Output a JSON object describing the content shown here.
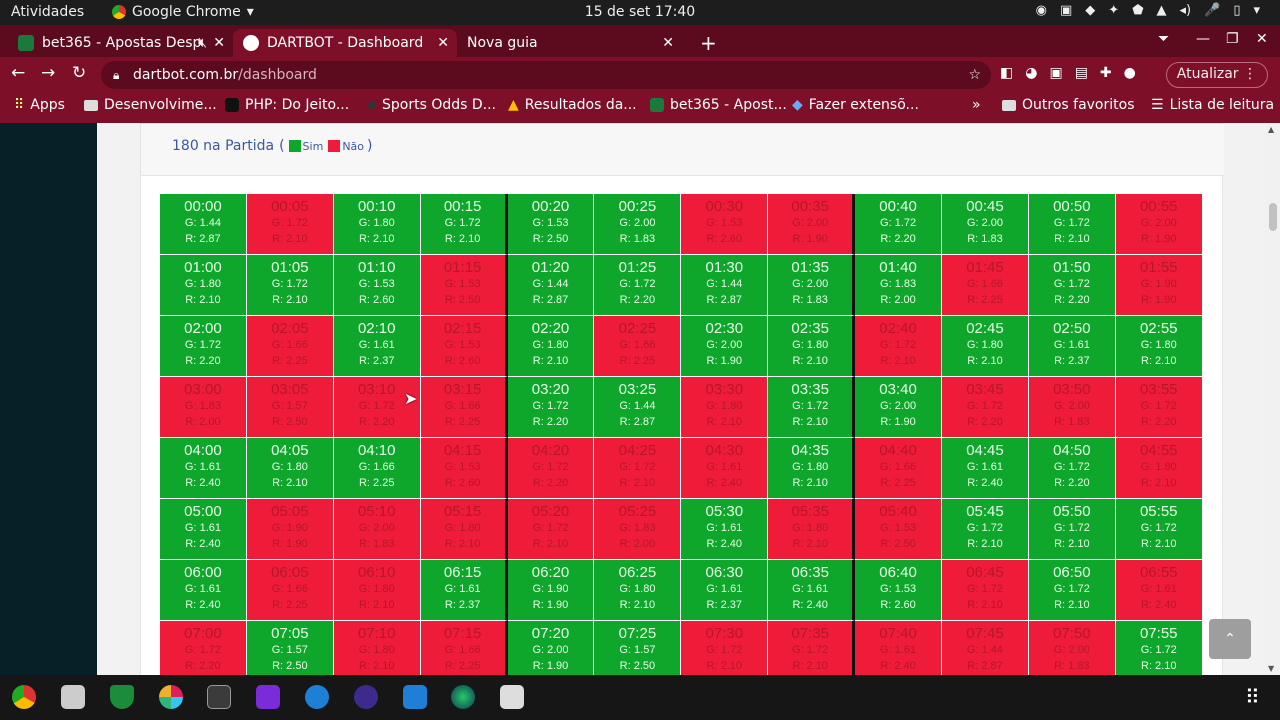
{
  "system": {
    "activities": "Atividades",
    "app_name": "Google Chrome",
    "clock": "15 de set  17:40",
    "tray": [
      "◉",
      "▣",
      "◆",
      "✦",
      "⬟",
      "▲",
      "◂)",
      "🎤",
      "▯",
      "▾"
    ]
  },
  "tabs": [
    {
      "title": "bet365 - Apostas Desp",
      "fav_color": "#1a7a3c"
    },
    {
      "title": "DARTBOT - Dashboard",
      "fav_color": "#ffffff"
    },
    {
      "title": "Nova guia",
      "fav_color": ""
    }
  ],
  "toolbar": {
    "url_host": "dartbot.com.br",
    "url_path": "/dashboard",
    "update_label": "Atualizar"
  },
  "bookmarks": {
    "items": [
      "Apps",
      "Desenvolvime...",
      "PHP: Do Jeito...",
      "Sports Odds D...",
      "Resultados da...",
      "bet365 - Apost...",
      "Fazer extensõ..."
    ],
    "more": "»",
    "others": "Outros favoritos",
    "reading": "Lista de leitura"
  },
  "card": {
    "title": "180 na Partida",
    "paren_open": "(",
    "paren_close": ")",
    "legend_yes": "Sim",
    "legend_no": "Não",
    "yes_color": "#0ea62b",
    "no_color": "#ee1c38"
  },
  "grid": [
    [
      {
        "time": "00:00",
        "g": "G: 1.44",
        "r": "R: 2.87",
        "res": "g"
      },
      {
        "time": "00:05",
        "g": "G: 1.72",
        "r": "R: 2.10",
        "res": "r"
      },
      {
        "time": "00:10",
        "g": "G: 1.80",
        "r": "R: 2.10",
        "res": "g"
      },
      {
        "time": "00:15",
        "g": "G: 1.72",
        "r": "R: 2.10",
        "res": "g"
      },
      {
        "time": "00:20",
        "g": "G: 1.53",
        "r": "R: 2.50",
        "res": "g"
      },
      {
        "time": "00:25",
        "g": "G: 2.00",
        "r": "R: 1.83",
        "res": "g"
      },
      {
        "time": "00:30",
        "g": "G: 1.53",
        "r": "R: 2.60",
        "res": "r"
      },
      {
        "time": "00:35",
        "g": "G: 2.00",
        "r": "R: 1.90",
        "res": "r"
      },
      {
        "time": "00:40",
        "g": "G: 1.72",
        "r": "R: 2.20",
        "res": "g"
      },
      {
        "time": "00:45",
        "g": "G: 2.00",
        "r": "R: 1.83",
        "res": "g"
      },
      {
        "time": "00:50",
        "g": "G: 1.72",
        "r": "R: 2.10",
        "res": "g"
      },
      {
        "time": "00:55",
        "g": "G: 2.00",
        "r": "R: 1.90",
        "res": "r"
      }
    ],
    [
      {
        "time": "01:00",
        "g": "G: 1.80",
        "r": "R: 2.10",
        "res": "g"
      },
      {
        "time": "01:05",
        "g": "G: 1.72",
        "r": "R: 2.10",
        "res": "g"
      },
      {
        "time": "01:10",
        "g": "G: 1.53",
        "r": "R: 2.60",
        "res": "g"
      },
      {
        "time": "01:15",
        "g": "G: 1.53",
        "r": "R: 2.50",
        "res": "r"
      },
      {
        "time": "01:20",
        "g": "G: 1.44",
        "r": "R: 2.87",
        "res": "g"
      },
      {
        "time": "01:25",
        "g": "G: 1.72",
        "r": "R: 2.20",
        "res": "g"
      },
      {
        "time": "01:30",
        "g": "G: 1.44",
        "r": "R: 2.87",
        "res": "g"
      },
      {
        "time": "01:35",
        "g": "G: 2.00",
        "r": "R: 1.83",
        "res": "g"
      },
      {
        "time": "01:40",
        "g": "G: 1.83",
        "r": "R: 2.00",
        "res": "g"
      },
      {
        "time": "01:45",
        "g": "G: 1.66",
        "r": "R: 2.25",
        "res": "r"
      },
      {
        "time": "01:50",
        "g": "G: 1.72",
        "r": "R: 2.20",
        "res": "g"
      },
      {
        "time": "01:55",
        "g": "G: 1.90",
        "r": "R: 1.90",
        "res": "r"
      }
    ],
    [
      {
        "time": "02:00",
        "g": "G: 1.72",
        "r": "R: 2.20",
        "res": "g"
      },
      {
        "time": "02:05",
        "g": "G: 1.66",
        "r": "R: 2.25",
        "res": "r"
      },
      {
        "time": "02:10",
        "g": "G: 1.61",
        "r": "R: 2.37",
        "res": "g"
      },
      {
        "time": "02:15",
        "g": "G: 1.53",
        "r": "R: 2.60",
        "res": "r"
      },
      {
        "time": "02:20",
        "g": "G: 1.80",
        "r": "R: 2.10",
        "res": "g"
      },
      {
        "time": "02:25",
        "g": "G: 1.66",
        "r": "R: 2.25",
        "res": "r"
      },
      {
        "time": "02:30",
        "g": "G: 2.00",
        "r": "R: 1.90",
        "res": "g"
      },
      {
        "time": "02:35",
        "g": "G: 1.80",
        "r": "R: 2.10",
        "res": "g"
      },
      {
        "time": "02:40",
        "g": "G: 1.72",
        "r": "R: 2.10",
        "res": "r"
      },
      {
        "time": "02:45",
        "g": "G: 1.80",
        "r": "R: 2.10",
        "res": "g"
      },
      {
        "time": "02:50",
        "g": "G: 1.61",
        "r": "R: 2.37",
        "res": "g"
      },
      {
        "time": "02:55",
        "g": "G: 1.80",
        "r": "R: 2.10",
        "res": "g"
      }
    ],
    [
      {
        "time": "03:00",
        "g": "G: 1.83",
        "r": "R: 2.00",
        "res": "r"
      },
      {
        "time": "03:05",
        "g": "G: 1.57",
        "r": "R: 2.50",
        "res": "r"
      },
      {
        "time": "03:10",
        "g": "G: 1.72",
        "r": "R: 2.20",
        "res": "r"
      },
      {
        "time": "03:15",
        "g": "G: 1.66",
        "r": "R: 2.25",
        "res": "r"
      },
      {
        "time": "03:20",
        "g": "G: 1.72",
        "r": "R: 2.20",
        "res": "g"
      },
      {
        "time": "03:25",
        "g": "G: 1.44",
        "r": "R: 2.87",
        "res": "g"
      },
      {
        "time": "03:30",
        "g": "G: 1.80",
        "r": "R: 2.10",
        "res": "r"
      },
      {
        "time": "03:35",
        "g": "G: 1.72",
        "r": "R: 2.10",
        "res": "g"
      },
      {
        "time": "03:40",
        "g": "G: 2.00",
        "r": "R: 1.90",
        "res": "g"
      },
      {
        "time": "03:45",
        "g": "G: 1.72",
        "r": "R: 2.20",
        "res": "r"
      },
      {
        "time": "03:50",
        "g": "G: 2.00",
        "r": "R: 1.83",
        "res": "r"
      },
      {
        "time": "03:55",
        "g": "G: 1.72",
        "r": "R: 2.20",
        "res": "r"
      }
    ],
    [
      {
        "time": "04:00",
        "g": "G: 1.61",
        "r": "R: 2.40",
        "res": "g"
      },
      {
        "time": "04:05",
        "g": "G: 1.80",
        "r": "R: 2.10",
        "res": "g"
      },
      {
        "time": "04:10",
        "g": "G: 1.66",
        "r": "R: 2.25",
        "res": "g"
      },
      {
        "time": "04:15",
        "g": "G: 1.53",
        "r": "R: 2.60",
        "res": "r"
      },
      {
        "time": "04:20",
        "g": "G: 1.72",
        "r": "R: 2.20",
        "res": "r"
      },
      {
        "time": "04:25",
        "g": "G: 1.72",
        "r": "R: 2.10",
        "res": "r"
      },
      {
        "time": "04:30",
        "g": "G: 1.61",
        "r": "R: 2.40",
        "res": "r"
      },
      {
        "time": "04:35",
        "g": "G: 1.80",
        "r": "R: 2.10",
        "res": "g"
      },
      {
        "time": "04:40",
        "g": "G: 1.66",
        "r": "R: 2.25",
        "res": "r"
      },
      {
        "time": "04:45",
        "g": "G: 1.61",
        "r": "R: 2.40",
        "res": "g"
      },
      {
        "time": "04:50",
        "g": "G: 1.72",
        "r": "R: 2.20",
        "res": "g"
      },
      {
        "time": "04:55",
        "g": "G: 1.80",
        "r": "R: 2.10",
        "res": "r"
      }
    ],
    [
      {
        "time": "05:00",
        "g": "G: 1.61",
        "r": "R: 2.40",
        "res": "g"
      },
      {
        "time": "05:05",
        "g": "G: 1.90",
        "r": "R: 1.90",
        "res": "r"
      },
      {
        "time": "05:10",
        "g": "G: 2.00",
        "r": "R: 1.83",
        "res": "r"
      },
      {
        "time": "05:15",
        "g": "G: 1.80",
        "r": "R: 2.10",
        "res": "r"
      },
      {
        "time": "05:20",
        "g": "G: 1.72",
        "r": "R: 2.10",
        "res": "r"
      },
      {
        "time": "05:25",
        "g": "G: 1.83",
        "r": "R: 2.00",
        "res": "r"
      },
      {
        "time": "05:30",
        "g": "G: 1.61",
        "r": "R: 2.40",
        "res": "g"
      },
      {
        "time": "05:35",
        "g": "G: 1.80",
        "r": "R: 2.10",
        "res": "r"
      },
      {
        "time": "05:40",
        "g": "G: 1.53",
        "r": "R: 2.50",
        "res": "r"
      },
      {
        "time": "05:45",
        "g": "G: 1.72",
        "r": "R: 2.10",
        "res": "g"
      },
      {
        "time": "05:50",
        "g": "G: 1.72",
        "r": "R: 2.10",
        "res": "g"
      },
      {
        "time": "05:55",
        "g": "G: 1.72",
        "r": "R: 2.10",
        "res": "g"
      }
    ],
    [
      {
        "time": "06:00",
        "g": "G: 1.61",
        "r": "R: 2.40",
        "res": "g"
      },
      {
        "time": "06:05",
        "g": "G: 1.66",
        "r": "R: 2.25",
        "res": "r"
      },
      {
        "time": "06:10",
        "g": "G: 1.80",
        "r": "R: 2.10",
        "res": "r"
      },
      {
        "time": "06:15",
        "g": "G: 1.61",
        "r": "R: 2.37",
        "res": "g"
      },
      {
        "time": "06:20",
        "g": "G: 1.90",
        "r": "R: 1.90",
        "res": "g"
      },
      {
        "time": "06:25",
        "g": "G: 1.80",
        "r": "R: 2.10",
        "res": "g"
      },
      {
        "time": "06:30",
        "g": "G: 1.61",
        "r": "R: 2.37",
        "res": "g"
      },
      {
        "time": "06:35",
        "g": "G: 1.61",
        "r": "R: 2.40",
        "res": "g"
      },
      {
        "time": "06:40",
        "g": "G: 1.53",
        "r": "R: 2.60",
        "res": "g"
      },
      {
        "time": "06:45",
        "g": "G: 1.72",
        "r": "R: 2.10",
        "res": "r"
      },
      {
        "time": "06:50",
        "g": "G: 1.72",
        "r": "R: 2.10",
        "res": "g"
      },
      {
        "time": "06:55",
        "g": "G: 1.61",
        "r": "R: 2.40",
        "res": "r"
      }
    ],
    [
      {
        "time": "07:00",
        "g": "G: 1.72",
        "r": "R: 2.20",
        "res": "r"
      },
      {
        "time": "07:05",
        "g": "G: 1.57",
        "r": "R: 2.50",
        "res": "g"
      },
      {
        "time": "07:10",
        "g": "G: 1.80",
        "r": "R: 2.10",
        "res": "r"
      },
      {
        "time": "07:15",
        "g": "G: 1.66",
        "r": "R: 2.25",
        "res": "r"
      },
      {
        "time": "07:20",
        "g": "G: 2.00",
        "r": "R: 1.90",
        "res": "g"
      },
      {
        "time": "07:25",
        "g": "G: 1.57",
        "r": "R: 2.50",
        "res": "g"
      },
      {
        "time": "07:30",
        "g": "G: 1.72",
        "r": "R: 2.10",
        "res": "r"
      },
      {
        "time": "07:35",
        "g": "G: 1.72",
        "r": "R: 2.10",
        "res": "r"
      },
      {
        "time": "07:40",
        "g": "G: 1.61",
        "r": "R: 2.40",
        "res": "r"
      },
      {
        "time": "07:45",
        "g": "G: 1.44",
        "r": "R: 2.87",
        "res": "r"
      },
      {
        "time": "07:50",
        "g": "G: 2.00",
        "r": "R: 1.83",
        "res": "r"
      },
      {
        "time": "07:55",
        "g": "G: 1.72",
        "r": "R: 2.10",
        "res": "g"
      }
    ]
  ]
}
